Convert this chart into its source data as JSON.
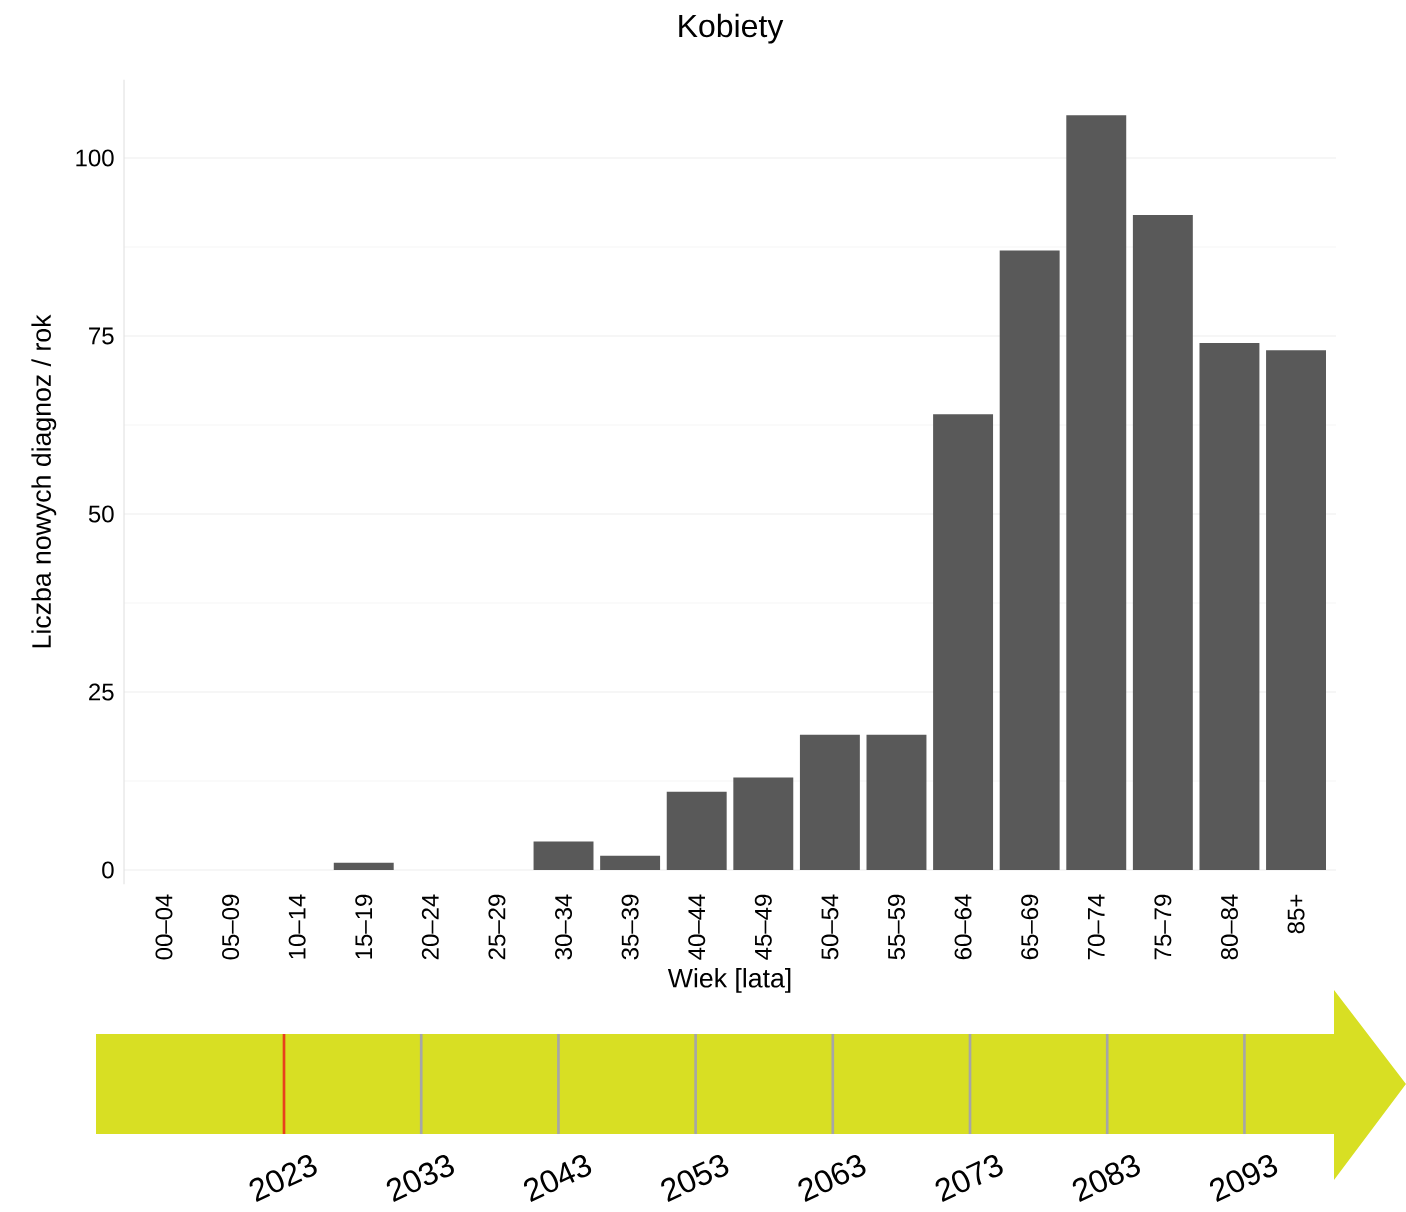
{
  "chart_data": {
    "type": "bar",
    "title": "Kobiety",
    "xlabel": "Wiek [lata]",
    "ylabel": "Liczba nowych diagnoz / rok",
    "categories": [
      "00–04",
      "05–09",
      "10–14",
      "15–19",
      "20–24",
      "25–29",
      "30–34",
      "35–39",
      "40–44",
      "45–49",
      "50–54",
      "55–59",
      "60–64",
      "65–69",
      "70–74",
      "75–79",
      "80–84",
      "85+"
    ],
    "values": [
      0,
      0,
      0,
      1,
      0,
      0,
      4,
      2,
      11,
      13,
      19,
      19,
      64,
      87,
      106,
      92,
      74,
      73
    ],
    "color": "#595959",
    "ylim": [
      -2,
      111
    ],
    "yticks": [
      0,
      25,
      50,
      75,
      100
    ],
    "grid": "y",
    "annotations": [
      "2023",
      "2033",
      "2043",
      "2053",
      "2063",
      "2073",
      "2083",
      "2093"
    ]
  }
}
